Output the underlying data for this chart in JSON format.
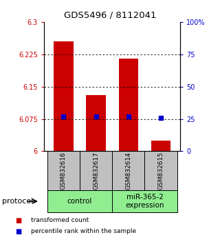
{
  "title": "GDS5496 / 8112041",
  "samples": [
    "GSM832616",
    "GSM832617",
    "GSM832614",
    "GSM832615"
  ],
  "groups": [
    {
      "label": "control",
      "color": "#90EE90"
    },
    {
      "label": "miR-365-2\nexpression",
      "color": "#90EE90"
    }
  ],
  "bar_values": [
    6.255,
    6.13,
    6.215,
    6.025
  ],
  "percentile_values": [
    27,
    27,
    27,
    26
  ],
  "ylim_left": [
    6.0,
    6.3
  ],
  "ylim_right": [
    0,
    100
  ],
  "yticks_left": [
    6.0,
    6.075,
    6.15,
    6.225,
    6.3
  ],
  "ytick_labels_left": [
    "6",
    "6.075",
    "6.15",
    "6.225",
    "6.3"
  ],
  "ytick_labels_right": [
    "0",
    "25",
    "50",
    "75",
    "100%"
  ],
  "bar_color": "#CC0000",
  "percentile_color": "#0000CC",
  "bar_bottom": 6.0,
  "bar_width": 0.6,
  "sample_box_color": "#C0C0C0",
  "protocol_label": "protocol",
  "legend_red_label": "transformed count",
  "legend_blue_label": "percentile rank within the sample"
}
